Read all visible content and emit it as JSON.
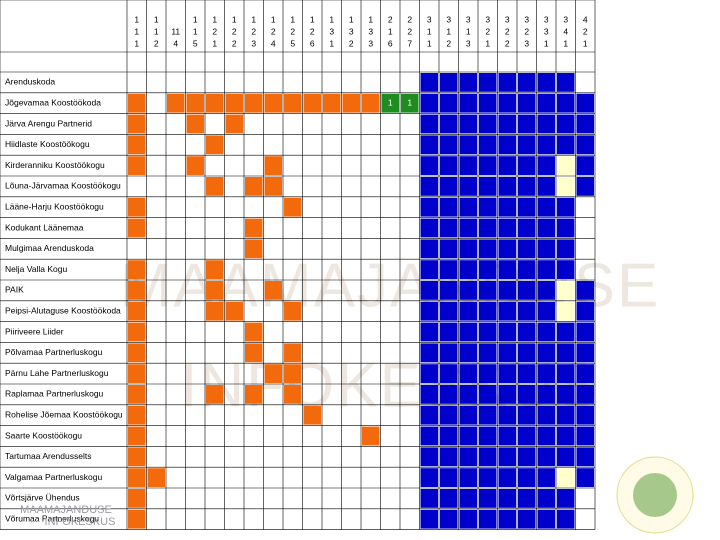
{
  "columns": [
    [
      "1",
      "1",
      "1"
    ],
    [
      "1",
      "1",
      "2"
    ],
    [
      "11",
      "4"
    ],
    [
      "1",
      "1",
      "5"
    ],
    [
      "1",
      "2",
      "1"
    ],
    [
      "1",
      "2",
      "2"
    ],
    [
      "1",
      "2",
      "3"
    ],
    [
      "1",
      "2",
      "4"
    ],
    [
      "1",
      "2",
      "5"
    ],
    [
      "1",
      "2",
      "6"
    ],
    [
      "1",
      "3",
      "1"
    ],
    [
      "1",
      "3",
      "2"
    ],
    [
      "1",
      "3",
      "3"
    ],
    [
      "2",
      "1",
      "6"
    ],
    [
      "2",
      "2",
      "7"
    ],
    [
      "3",
      "1",
      "1"
    ],
    [
      "3",
      "1",
      "2"
    ],
    [
      "3",
      "1",
      "3"
    ],
    [
      "3",
      "2",
      "1"
    ],
    [
      "3",
      "2",
      "2"
    ],
    [
      "3",
      "2",
      "3"
    ],
    [
      "3",
      "3",
      "1"
    ],
    [
      "3",
      "4",
      "1"
    ],
    [
      "4",
      "2",
      "1"
    ]
  ],
  "rows": [
    "Arenduskoda",
    "Jõgevamaa Koostöökoda",
    "Järva Arengu Partnerid",
    "Hiidlaste Koostöökogu",
    "Kirderanniku Koostöökogu",
    "Lõuna-Järvamaa Koostöökogu",
    "Lääne-Harju Koostöökogu",
    "Kodukant Läänemaa",
    "Mulgimaa Arenduskoda",
    "Nelja Valla Kogu",
    "PAIK",
    "Peipsi-Alutaguse Koostöökoda",
    "Piiriveere Liider",
    "Põlvamaa Partnerluskogu",
    "Pärnu Lahe Partnerluskogu",
    "Raplamaa Partnerluskogu",
    "Rohelise Jõemaa Koostöökogu",
    "Saarte Koostöökogu",
    "Tartumaa Arendusselts",
    "Valgamaa Partnerluskogu",
    "Võrtsjärve Ühendus",
    "Võrumaa Partnerluskogu"
  ],
  "cell_labels": [
    "1",
    "1"
  ],
  "watermark": [
    "MAAMAJANDUSE",
    "INFOKESKUS"
  ],
  "logo": [
    "MAAMAJANDUSE",
    "INFOKESKUS"
  ]
}
